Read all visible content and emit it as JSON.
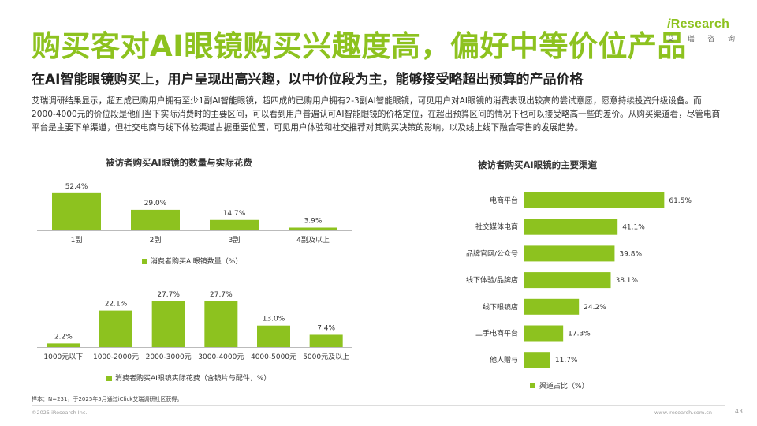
{
  "title": "购买客对AI眼镜购买兴趣度高，偏好中等价位产品",
  "subtitle": "在AI智能眼镜购买上，用户呈现出高兴趣，以中价位段为主，能够接受略超出预算的产品价格",
  "logo": {
    "word_i": "i",
    "word_rest": "Research",
    "sub": [
      "艾",
      "瑞",
      "咨",
      "询"
    ]
  },
  "description": "艾瑞调研结果显示，超五成已购用户拥有至少1副AI智能眼镜，超四成的已购用户拥有2-3副AI智能眼镜，可见用户对AI眼镜的消费表现出较高的尝试意愿，愿意持续投资升级设备。而2000-4000元的价位段是他们当下实际消费时的主要区间，可以看到用户普遍认可AI智能眼镜的价格定位，在超出预算区间的情况下也可以接受略高一些的差价。从购买渠道看，尽管电商平台是主要下单渠道，但社交电商与线下体验渠道占据重要位置，可见用户体验和社交推荐对其购买决策的影响，以及线上线下融合零售的发展趋势。",
  "colors": {
    "brand": "#8dc21f",
    "bar": "#8dc21f"
  },
  "chart_data": [
    {
      "type": "bar",
      "title": "被访者购买AI眼镜的数量与实际花费",
      "categories": [
        "1副",
        "2副",
        "3副",
        "4副及以上"
      ],
      "series": [
        {
          "name": "消费者购买AI眼镜数量（%）",
          "values": [
            52.4,
            29.0,
            14.7,
            3.9
          ]
        }
      ],
      "data_labels": [
        "52.4%",
        "29.0%",
        "14.7%",
        "3.9%"
      ],
      "legend": "bottom"
    },
    {
      "type": "bar",
      "categories": [
        "1000元以下",
        "1000-2000元",
        "2000-3000元",
        "3000-4000元",
        "4000-5000元",
        "5000元及以上"
      ],
      "series": [
        {
          "name": "消费者购买AI眼镜实际花费（含镜片与配件，%）",
          "values": [
            2.2,
            22.1,
            27.7,
            27.7,
            13.0,
            7.4
          ]
        }
      ],
      "data_labels": [
        "2.2%",
        "22.1%",
        "27.7%",
        "27.7%",
        "13.0%",
        "7.4%"
      ],
      "legend": "bottom"
    },
    {
      "type": "bar",
      "orientation": "horizontal",
      "title": "被访者购买AI眼镜的主要渠道",
      "categories": [
        "电商平台",
        "社交媒体电商",
        "品牌官网/公众号",
        "线下体验/品牌店",
        "线下眼镜店",
        "二手电商平台",
        "他人赠与"
      ],
      "series": [
        {
          "name": "渠道占比（%）",
          "values": [
            61.5,
            41.1,
            39.8,
            38.1,
            24.2,
            17.3,
            11.7
          ]
        }
      ],
      "data_labels": [
        "61.5%",
        "41.1%",
        "39.8%",
        "38.1%",
        "24.2%",
        "17.3%",
        "11.7%"
      ],
      "legend": "bottom"
    }
  ],
  "footnote": "样本：N=231，于2025年5月通过iClick艾瑞调研社区获得。",
  "copyright": "©2025 iResearch Inc.",
  "site": "www.iresearch.com.cn",
  "page_number": "43"
}
